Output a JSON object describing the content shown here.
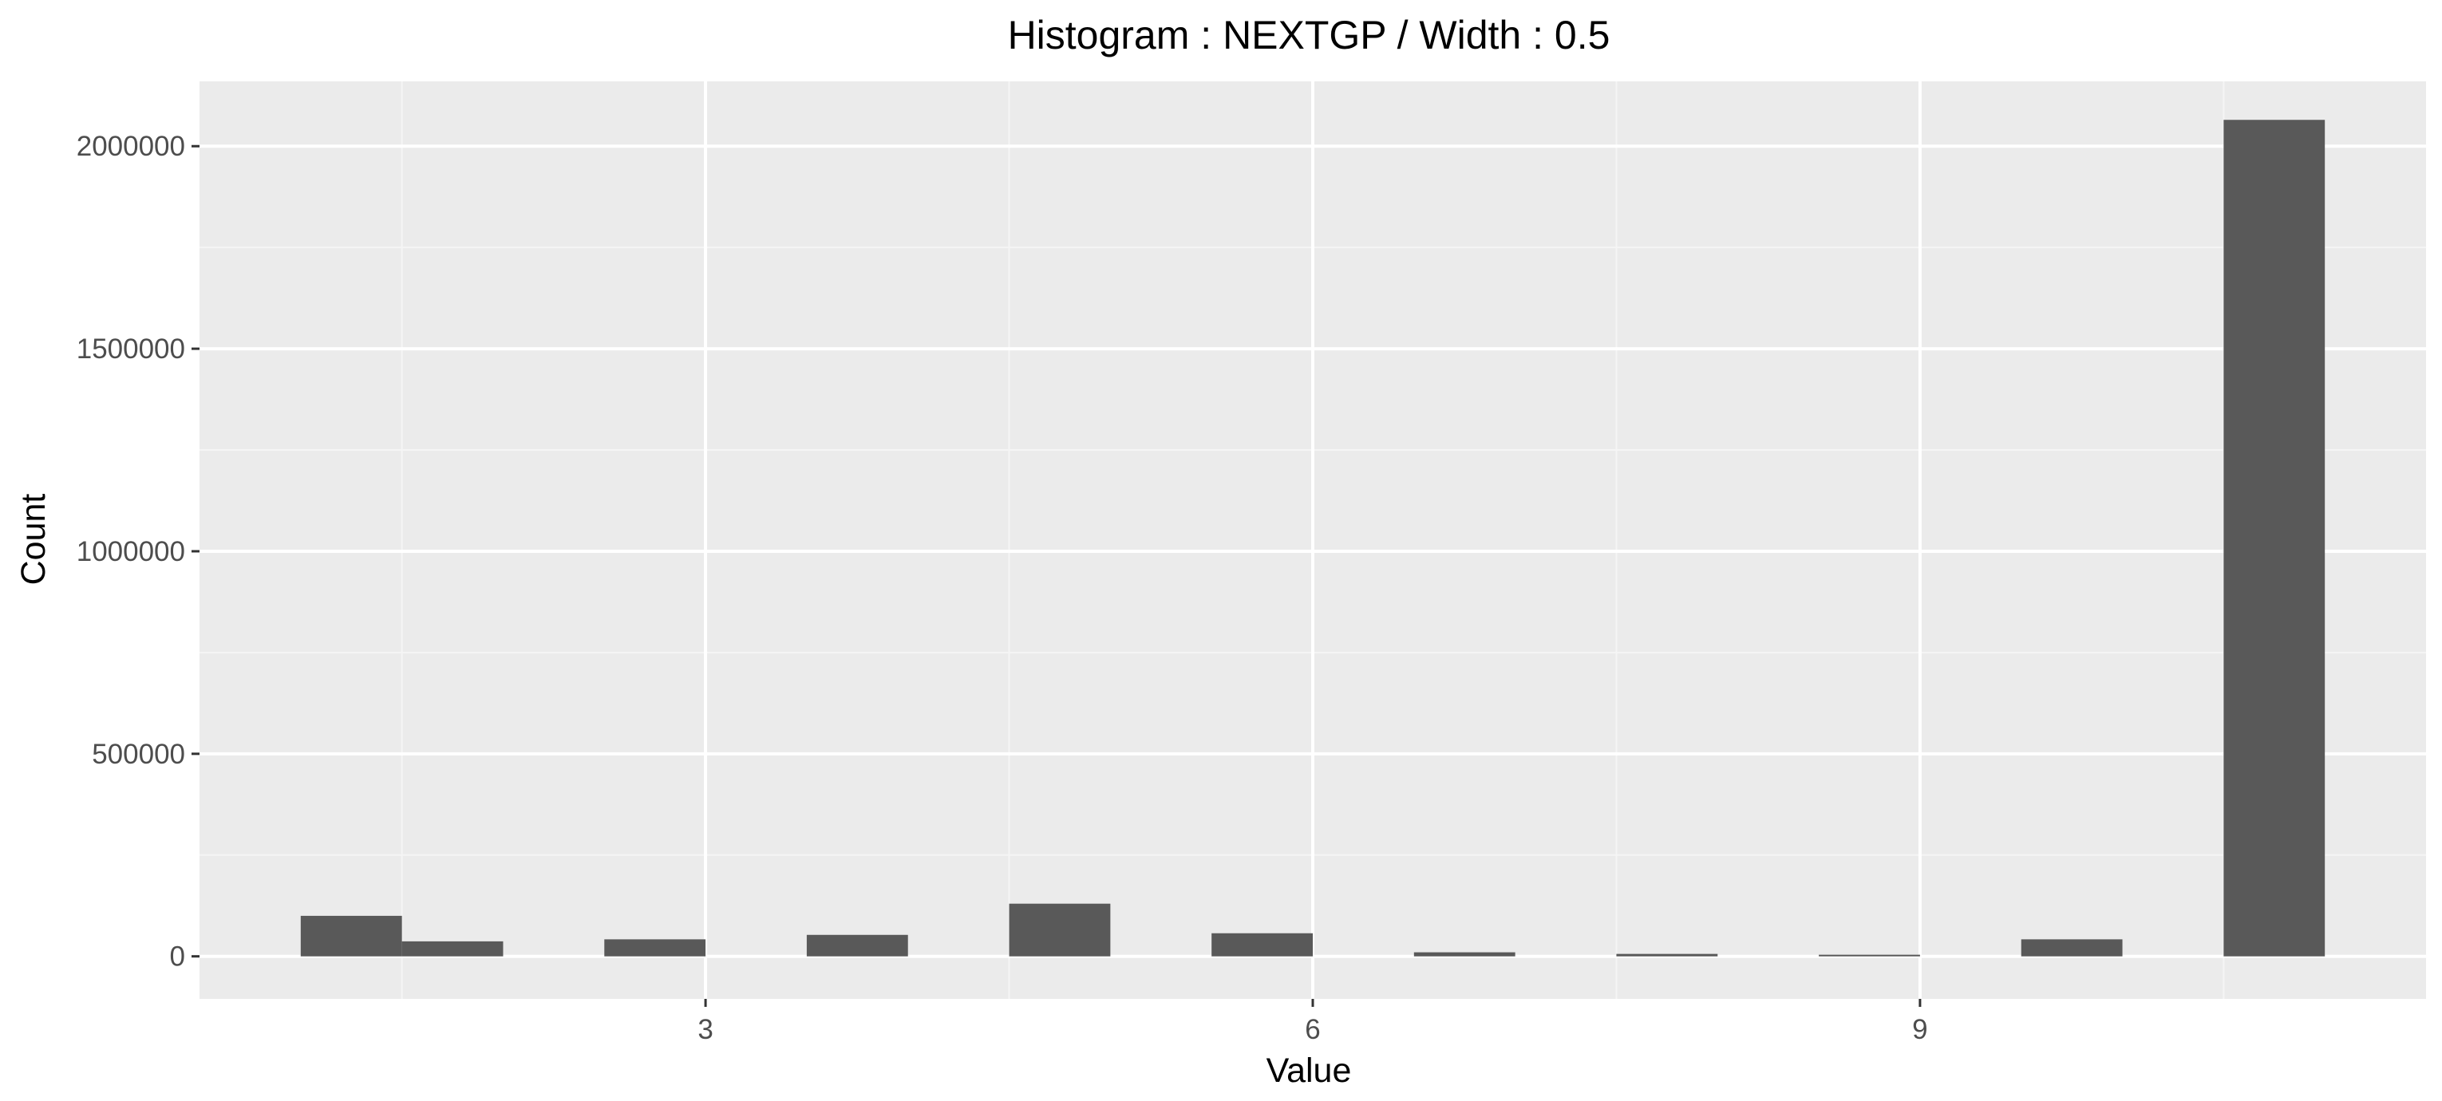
{
  "chart_data": {
    "type": "bar",
    "title": "Histogram : NEXTGP / Width : 0.5",
    "xlabel": "Value",
    "ylabel": "Count",
    "bin_width": 0.5,
    "bins": [
      {
        "x0": 1.0,
        "x1": 1.5,
        "count": 100000
      },
      {
        "x0": 1.5,
        "x1": 2.0,
        "count": 37000
      },
      {
        "x0": 2.5,
        "x1": 3.0,
        "count": 42000
      },
      {
        "x0": 3.5,
        "x1": 4.0,
        "count": 53000
      },
      {
        "x0": 4.5,
        "x1": 5.0,
        "count": 130000
      },
      {
        "x0": 5.5,
        "x1": 6.0,
        "count": 57000
      },
      {
        "x0": 6.5,
        "x1": 7.0,
        "count": 10000
      },
      {
        "x0": 7.5,
        "x1": 8.0,
        "count": 6000
      },
      {
        "x0": 8.5,
        "x1": 9.0,
        "count": 4000
      },
      {
        "x0": 9.5,
        "x1": 10.0,
        "count": 42000
      },
      {
        "x0": 10.5,
        "x1": 11.0,
        "count": 2065000
      }
    ],
    "xlim": [
      0.5,
      11.5
    ],
    "ylim": [
      -105000,
      2160000
    ],
    "x_ticks": [
      3,
      6,
      9
    ],
    "x_tick_labels": [
      "3",
      "6",
      "9"
    ],
    "y_ticks": [
      0,
      500000,
      1000000,
      1500000,
      2000000
    ],
    "y_tick_labels": [
      "0",
      "500000",
      "1000000",
      "1500000",
      "2000000"
    ],
    "grid": true,
    "legend": "none",
    "colors": {
      "bar": "#595959",
      "panel": "#ebebeb",
      "grid_major": "#ffffff",
      "grid_minor": "#f5f5f5",
      "tick_label": "#4d4d4d",
      "text": "#000000"
    }
  }
}
